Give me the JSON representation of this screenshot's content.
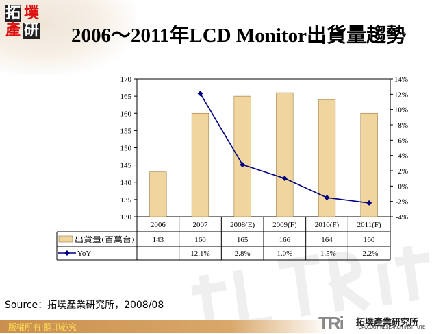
{
  "logo": {
    "chars": [
      "拓",
      "墣",
      "產",
      "研"
    ]
  },
  "title": "2006～2011年LCD Monitor出貨量趨勢",
  "source": "Source：拓墣產業研究所，2008/08",
  "footer": {
    "copyright": "版權所有‧翻印必究",
    "brand_mark": "TRi",
    "brand_cn": "拓墣產業研究所",
    "brand_en": "TOPOLOGY RESEARCH INSTITUTE"
  },
  "chart_data": {
    "type": "bar+line",
    "categories": [
      "2006",
      "2007",
      "2008(E)",
      "2009(F)",
      "2010(F)",
      "2011(F)"
    ],
    "series": [
      {
        "name": "出貨量(百萬台)",
        "type": "bar",
        "axis": "left",
        "values": [
          143,
          160,
          165,
          166,
          164,
          160
        ],
        "labels": [
          "143",
          "160",
          "165",
          "166",
          "164",
          "160"
        ],
        "color": "#f0d59e"
      },
      {
        "name": "YoY",
        "type": "line",
        "axis": "right",
        "values": [
          null,
          12.1,
          2.8,
          1.0,
          -1.5,
          -2.2
        ],
        "labels": [
          "",
          "12.1%",
          "2.8%",
          "1.0%",
          "-1.5%",
          "-2.2%"
        ],
        "color": "#000080"
      }
    ],
    "left_axis": {
      "range": [
        130,
        170
      ],
      "ticks": [
        "130",
        "135",
        "140",
        "145",
        "150",
        "155",
        "160",
        "165",
        "170"
      ]
    },
    "right_axis": {
      "range": [
        -4,
        14
      ],
      "ticks": [
        "-4%",
        "-2%",
        "0%",
        "2%",
        "4%",
        "6%",
        "8%",
        "10%",
        "12%",
        "14%"
      ]
    },
    "grid": false,
    "legend": "data-table"
  }
}
